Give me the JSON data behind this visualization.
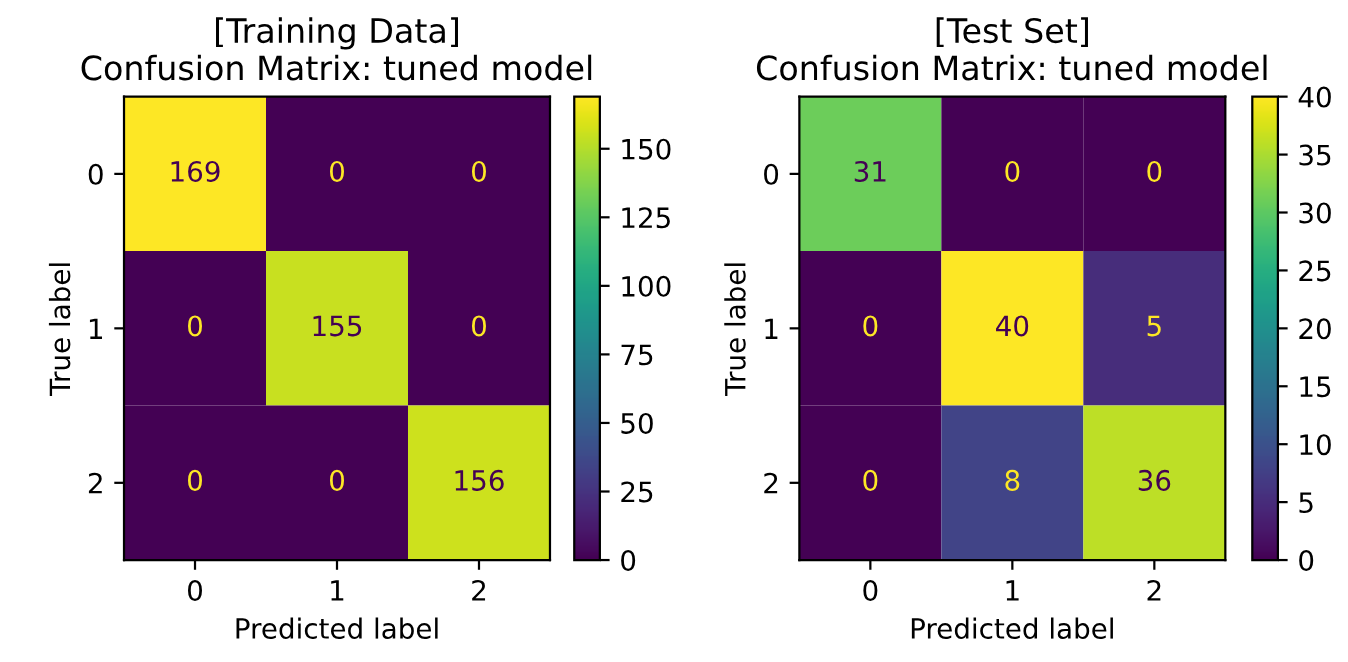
{
  "chart_data": [
    {
      "type": "heatmap",
      "title": "[Training Data]\nConfusion Matrix: tuned model",
      "xlabel": "Predicted label",
      "ylabel": "True label",
      "categories": [
        "0",
        "1",
        "2"
      ],
      "y_categories": [
        "0",
        "1",
        "2"
      ],
      "cells": [
        [
          169,
          0,
          0
        ],
        [
          0,
          155,
          0
        ],
        [
          0,
          0,
          156
        ]
      ],
      "clim": [
        0,
        169
      ],
      "cticks": [
        0,
        25,
        50,
        75,
        100,
        125,
        150
      ],
      "data_labels": true,
      "grid": false
    },
    {
      "type": "heatmap",
      "title": "[Test Set]\nConfusion Matrix: tuned model",
      "xlabel": "Predicted label",
      "ylabel": "True label",
      "categories": [
        "0",
        "1",
        "2"
      ],
      "y_categories": [
        "0",
        "1",
        "2"
      ],
      "cells": [
        [
          31,
          0,
          0
        ],
        [
          0,
          40,
          5
        ],
        [
          0,
          8,
          36
        ]
      ],
      "clim": [
        0,
        40
      ],
      "cticks": [
        0,
        5,
        10,
        15,
        20,
        25,
        30,
        35,
        40
      ],
      "data_labels": true,
      "grid": false
    }
  ]
}
